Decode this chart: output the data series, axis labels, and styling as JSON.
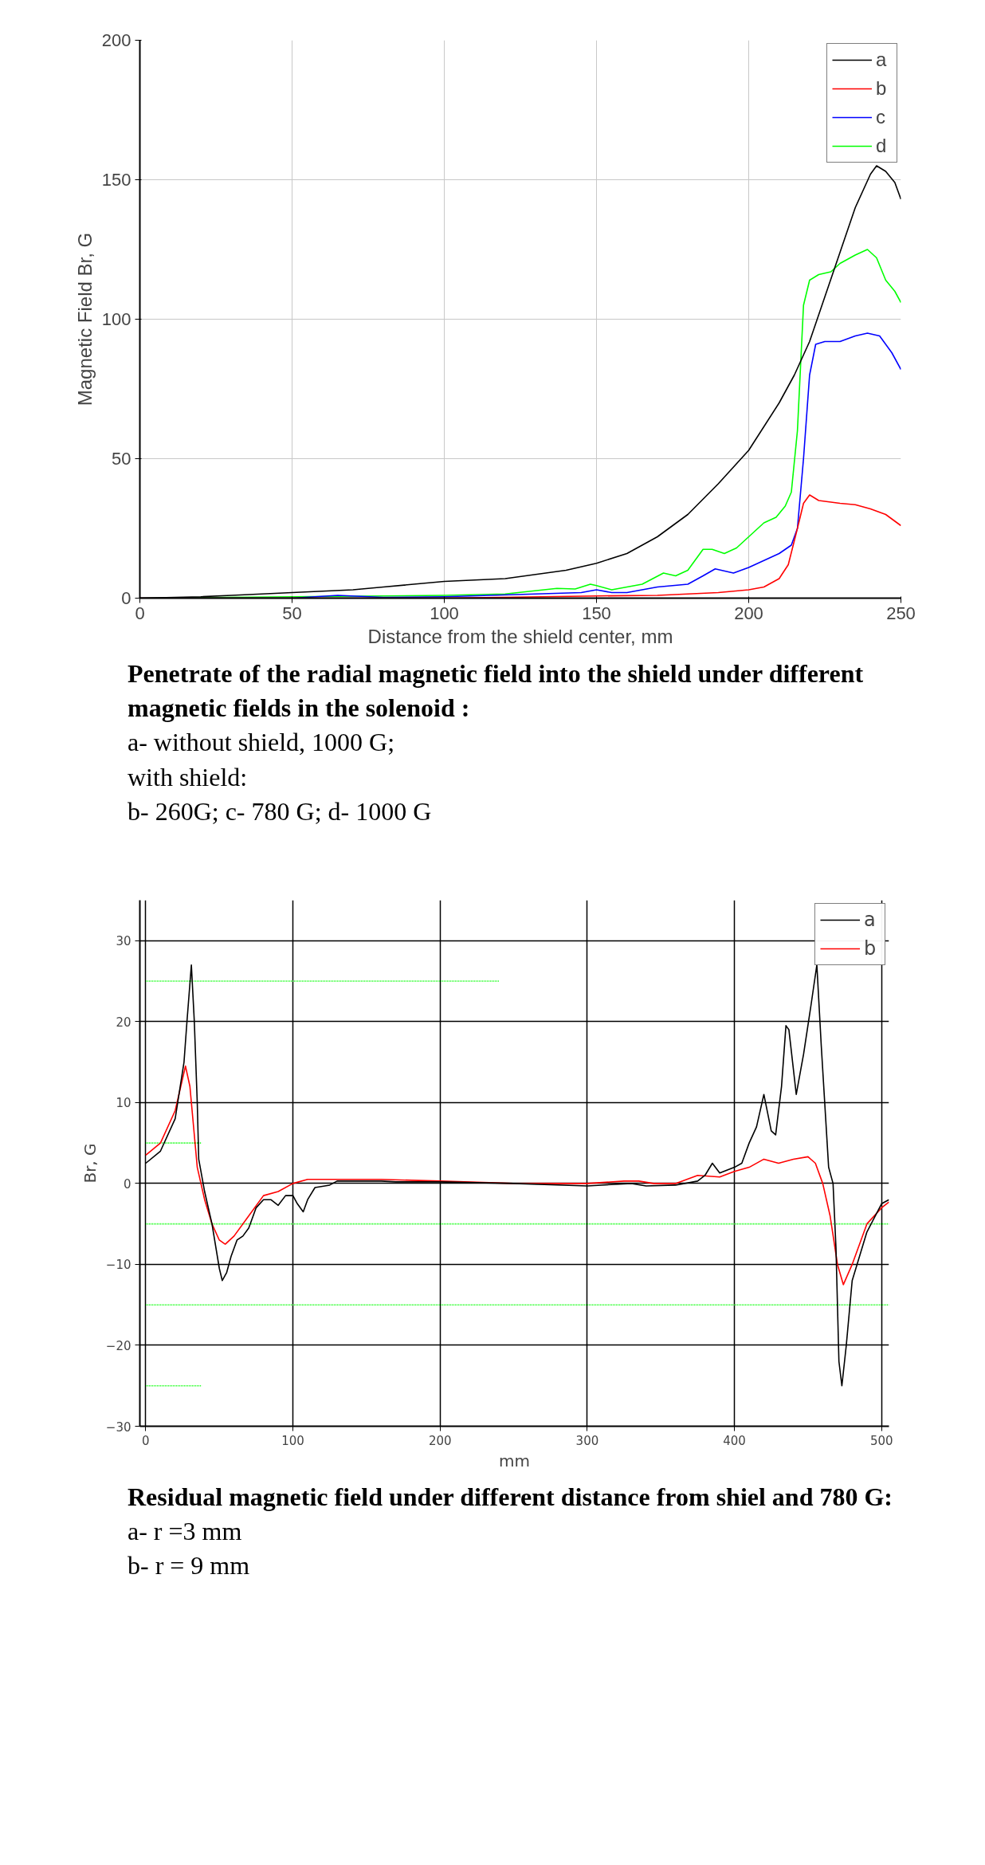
{
  "chart_data": [
    {
      "type": "line",
      "xlabel": "Distance from the shield center, mm",
      "ylabel": "Magnetic Field Br, G",
      "xlim": [
        0,
        250
      ],
      "ylim": [
        0,
        200
      ],
      "xticks": [
        0,
        50,
        100,
        150,
        200,
        250
      ],
      "yticks": [
        0,
        50,
        100,
        150,
        200
      ],
      "grid": true,
      "legend": "top right",
      "line_style": "solid",
      "marker": "none",
      "x": [
        0,
        20,
        30,
        50,
        70,
        80,
        100,
        120,
        140,
        150,
        160,
        170,
        180,
        190,
        200,
        210,
        215,
        220,
        225,
        230,
        235,
        240,
        242,
        245,
        248,
        250
      ],
      "series": [
        {
          "name": "a",
          "color": "#000000",
          "values": [
            0,
            0.5,
            1,
            2,
            3,
            4,
            6,
            7,
            10,
            12.5,
            16,
            22,
            30,
            41,
            53,
            70,
            80,
            92,
            108,
            124,
            140,
            152,
            155,
            153,
            149,
            143
          ]
        },
        {
          "name": "b",
          "color": "#ff0000",
          "x": [
            0,
            50,
            100,
            150,
            170,
            180,
            190,
            200,
            205,
            210,
            213,
            216,
            218,
            220,
            223,
            230,
            235,
            240,
            245,
            250
          ],
          "values": [
            0,
            null,
            null,
            0.8,
            1,
            1.5,
            2,
            3,
            4,
            7,
            12,
            25,
            34,
            37,
            35,
            34,
            33.5,
            32,
            30,
            26
          ]
        },
        {
          "name": "c",
          "color": "#0000ff",
          "x": [
            0,
            50,
            65,
            80,
            100,
            130,
            145,
            150,
            155,
            160,
            170,
            180,
            185,
            189,
            195,
            200,
            210,
            214,
            216,
            218,
            220,
            222,
            225,
            230,
            235,
            239,
            243,
            247,
            250
          ],
          "values": [
            0,
            null,
            1,
            0.3,
            0.5,
            1.5,
            2,
            3,
            2,
            2,
            4,
            5,
            8,
            10.5,
            9,
            11,
            16,
            19,
            25,
            50,
            80,
            91,
            92,
            92,
            94,
            95,
            94,
            88,
            82
          ]
        },
        {
          "name": "d",
          "color": "#00ff00",
          "x": [
            0,
            50,
            100,
            120,
            137,
            143,
            148,
            150,
            155,
            160,
            165,
            172,
            176,
            180,
            185,
            188,
            192,
            196,
            200,
            205,
            209,
            212,
            214,
            216,
            218,
            220,
            223,
            227,
            230,
            235,
            239,
            242,
            245,
            248,
            250
          ],
          "values": [
            0,
            0.5,
            1,
            1.5,
            3.5,
            3.3,
            5,
            4.5,
            3,
            4,
            5,
            9,
            8,
            10,
            17.5,
            17.5,
            16,
            18,
            22,
            27,
            29,
            33,
            38,
            60,
            105,
            114,
            116,
            117,
            120,
            123,
            125,
            122,
            114,
            110,
            106
          ]
        }
      ],
      "annotations": [
        "Penetrate of the radial magnetic field into the shield under different magnetic fields in the solenoid :",
        "a- without shield,  1000 G;",
        "with shield:",
        "b- 260G; c- 780 G; d- 1000 G"
      ]
    },
    {
      "type": "line",
      "xlabel": "mm",
      "ylabel": "Br, G",
      "xlim": [
        -4,
        505
      ],
      "ylim": [
        -30,
        35
      ],
      "xticks": [
        0,
        100,
        200,
        300,
        400,
        500
      ],
      "yticks": [
        -30,
        -20,
        -10,
        0,
        10,
        20,
        30
      ],
      "grid": true,
      "legend": "top right",
      "line_style": "solid",
      "marker": "none",
      "series": [
        {
          "name": "a",
          "color": "#000000",
          "x": [
            0,
            10,
            20,
            26,
            28,
            31,
            33,
            35,
            36,
            40,
            45,
            50,
            52,
            55,
            58,
            62,
            66,
            70,
            75,
            80,
            85,
            90,
            95,
            100,
            103,
            107,
            110,
            115,
            125,
            130,
            160,
            170,
            200,
            250,
            300,
            330,
            340,
            360,
            375,
            380,
            385,
            390,
            400,
            405,
            410,
            415,
            420,
            425,
            428,
            432,
            435,
            437,
            442,
            447,
            452,
            456,
            459,
            462,
            464,
            467,
            469,
            471,
            473,
            476,
            480,
            490,
            500,
            505
          ],
          "values": [
            2.5,
            4,
            8,
            15,
            20,
            27,
            20,
            10,
            3,
            -1,
            -5,
            -10.5,
            -12,
            -11,
            -9,
            -7,
            -6.5,
            -5.5,
            -3,
            -2,
            -2,
            -2.7,
            -1.5,
            -1.5,
            -2.5,
            -3.5,
            -2,
            -0.5,
            -0.2,
            0.3,
            0.3,
            0.2,
            0.2,
            0,
            -0.3,
            0,
            -0.3,
            -0.2,
            0.3,
            1,
            2.5,
            1.3,
            2,
            2.5,
            5,
            7,
            11,
            6.5,
            6,
            12,
            19.5,
            19,
            11,
            16,
            22,
            27,
            17,
            8,
            2,
            0,
            -8,
            -22,
            -25,
            -20,
            -12,
            -6,
            -2.5,
            -2
          ]
        },
        {
          "name": "b",
          "color": "#ff0000",
          "x": [
            0,
            10,
            20,
            27,
            30,
            35,
            40,
            45,
            50,
            54,
            60,
            70,
            80,
            90,
            100,
            110,
            160,
            200,
            250,
            300,
            325,
            335,
            345,
            360,
            375,
            390,
            400,
            410,
            420,
            430,
            440,
            450,
            455,
            460,
            465,
            470,
            474,
            480,
            490,
            500,
            505
          ],
          "values": [
            3.5,
            5,
            9,
            14.5,
            12,
            2,
            -2,
            -5,
            -7,
            -7.5,
            -6.5,
            -4,
            -1.5,
            -1,
            0,
            0.5,
            0.5,
            0.3,
            0,
            0,
            0.3,
            0.3,
            0,
            0,
            1,
            0.8,
            1.5,
            2,
            3,
            2.5,
            3,
            3.3,
            2.5,
            0,
            -4,
            -10,
            -12.5,
            -10,
            -5,
            -3,
            -2.3
          ]
        },
        {
          "color": "#00ff00",
          "line_style": "dotted",
          "x": [
            0,
            240
          ],
          "values": [
            25,
            25
          ]
        },
        {
          "color": "#00ff00",
          "line_style": "dotted",
          "x": [
            0,
            38
          ],
          "values": [
            5,
            5
          ]
        },
        {
          "color": "#00ff00",
          "line_style": "dotted",
          "x": [
            0,
            505
          ],
          "values": [
            -5,
            -5
          ]
        },
        {
          "color": "#00ff00",
          "line_style": "dotted",
          "x": [
            0,
            505
          ],
          "values": [
            -15,
            -15
          ]
        },
        {
          "color": "#00ff00",
          "line_style": "dotted",
          "x": [
            0,
            38
          ],
          "values": [
            -25,
            -25
          ]
        }
      ],
      "annotations": [
        "Residual  magnetic field under different distance  from  shiel and 780 G:",
        "a-  r =3 mm",
        "b-  r = 9 mm"
      ]
    }
  ]
}
